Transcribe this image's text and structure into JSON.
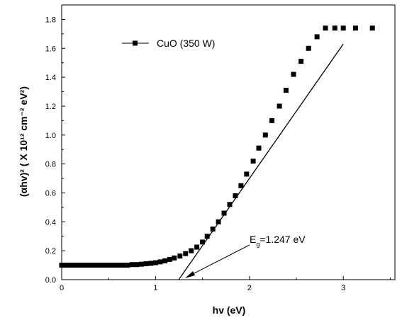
{
  "chart_data": {
    "type": "scatter",
    "xlabel": "hv (eV)",
    "ylabel": "(αhv)² ( X 10¹² cm⁻² eV²)",
    "xlim": [
      0,
      3.55
    ],
    "ylim": [
      0,
      1.9
    ],
    "xticks": [
      "0",
      "1",
      "2",
      "3"
    ],
    "yticks": [
      "0.0",
      "0.2",
      "0.4",
      "0.6",
      "0.8",
      "1.0",
      "1.2",
      "1.4",
      "1.6",
      "1.8"
    ],
    "grid": false,
    "legend": {
      "position": "top-left",
      "label": "CuO (350 W)"
    },
    "series": [
      {
        "name": "CuO (350 W)",
        "marker": "square",
        "color": "#000000",
        "x": [
          0.0,
          0.05,
          0.1,
          0.15,
          0.2,
          0.25,
          0.3,
          0.35,
          0.4,
          0.45,
          0.5,
          0.55,
          0.6,
          0.65,
          0.7,
          0.75,
          0.8,
          0.85,
          0.9,
          0.95,
          1.0,
          1.05,
          1.1,
          1.15,
          1.2,
          1.26,
          1.32,
          1.38,
          1.44,
          1.5,
          1.55,
          1.61,
          1.67,
          1.73,
          1.79,
          1.85,
          1.91,
          1.97,
          2.04,
          2.1,
          2.17,
          2.24,
          2.32,
          2.39,
          2.47,
          2.55,
          2.63,
          2.72,
          2.81,
          2.91,
          3.0,
          3.13,
          3.31
        ],
        "y": [
          0.1,
          0.1,
          0.1,
          0.1,
          0.1,
          0.1,
          0.1,
          0.1,
          0.1,
          0.1,
          0.1,
          0.1,
          0.1,
          0.1,
          0.1,
          0.104,
          0.104,
          0.107,
          0.11,
          0.113,
          0.117,
          0.123,
          0.13,
          0.14,
          0.15,
          0.163,
          0.18,
          0.2,
          0.225,
          0.26,
          0.3,
          0.35,
          0.4,
          0.46,
          0.52,
          0.58,
          0.65,
          0.73,
          0.82,
          0.91,
          1.0,
          1.1,
          1.2,
          1.31,
          1.42,
          1.51,
          1.6,
          1.68,
          1.74,
          1.74,
          1.74,
          1.74,
          1.74
        ]
      }
    ],
    "fit_line": {
      "x": [
        1.247,
        3.0
      ],
      "y": [
        0.0,
        1.63
      ]
    },
    "annotation": {
      "text_main": "E",
      "text_sub": "g",
      "text_value": "=1.247 eV",
      "x_value": 1.247
    }
  }
}
